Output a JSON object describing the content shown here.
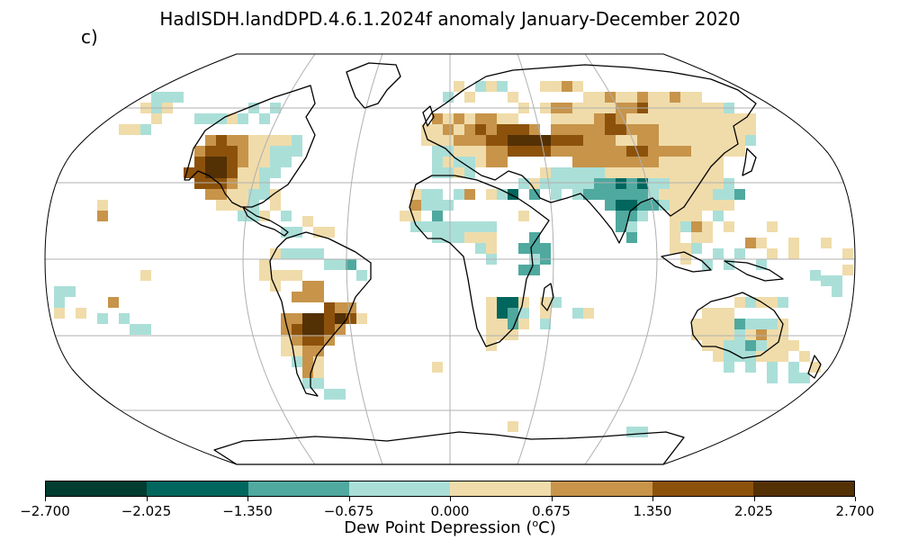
{
  "title": "HadISDH.landDPD.4.6.1.2024f anomaly January-December 2020",
  "panel_label": "c)",
  "colorbar": {
    "label_prefix": "Dew Point Depression (",
    "label_sup": "o",
    "label_suffix": "C)",
    "ticks": [
      "−2.700",
      "−2.025",
      "−1.350",
      "−0.675",
      "0.000",
      "0.675",
      "1.350",
      "2.025",
      "2.700"
    ],
    "colors": [
      "#003c30",
      "#01665e",
      "#4fa99f",
      "#aadfd8",
      "#f0dcaa",
      "#c7944a",
      "#8c520b",
      "#543005"
    ]
  },
  "map": {
    "projection": "Robinson",
    "gridlines": true,
    "colors": {
      "ocean": "#ffffff",
      "coast": "#000000",
      "grid": "#b0b0b0"
    }
  }
}
